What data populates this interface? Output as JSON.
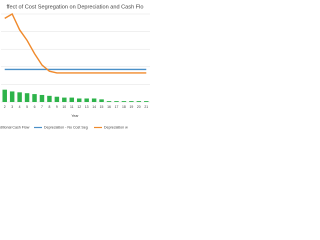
{
  "chart_data": {
    "type": "combo",
    "title": "ffect of Cost Segregation on Depreciation and Cash Flo",
    "x_label": "Year",
    "categories": [
      "2",
      "3",
      "4",
      "5",
      "6",
      "7",
      "8",
      "9",
      "10",
      "11",
      "12",
      "13",
      "14",
      "15",
      "16",
      "17",
      "18",
      "19",
      "20",
      "21"
    ],
    "ylim": [
      0,
      100
    ],
    "yticks": [
      0,
      20,
      40,
      60,
      80,
      100
    ],
    "grid": true,
    "series": [
      {
        "name": "dditional Cash Flow",
        "kind": "bar",
        "color": "#2db34a",
        "values": [
          14,
          12,
          11,
          10,
          9,
          8,
          7,
          6,
          5,
          5,
          4,
          4,
          4,
          3,
          1,
          1,
          1,
          1,
          1,
          1
        ]
      },
      {
        "name": "Depreciation - No Cost Seg",
        "kind": "line",
        "color": "#4a90c8",
        "values": [
          37,
          37,
          37,
          37,
          37,
          37,
          37,
          37,
          37,
          37,
          37,
          37,
          37,
          37,
          37,
          37,
          37,
          37,
          37,
          37
        ]
      },
      {
        "name": "Depreciation w",
        "kind": "line",
        "color": "#f08a2c",
        "values": [
          95,
          100,
          82,
          70,
          55,
          42,
          35,
          33,
          33,
          33,
          33,
          33,
          33,
          33,
          33,
          33,
          33,
          33,
          33,
          33
        ]
      }
    ]
  }
}
